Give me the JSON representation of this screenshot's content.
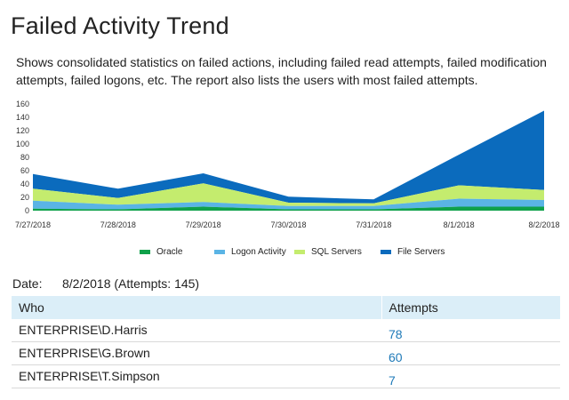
{
  "title": "Failed Activity Trend",
  "description": "Shows consolidated statistics on failed actions, including failed read attempts, failed modification attempts, failed logons, etc. The report also lists the users with most failed attempts.",
  "chart_data": {
    "type": "area",
    "stacked": true,
    "categories": [
      "7/27/2018",
      "7/28/2018",
      "7/29/2018",
      "7/30/2018",
      "7/31/2018",
      "8/1/2018",
      "8/2/2018"
    ],
    "yticks": [
      "0",
      "20",
      "40",
      "60",
      "80",
      "100",
      "120",
      "140",
      "160"
    ],
    "ylim": [
      0,
      160
    ],
    "grid": false,
    "legend_position": "bottom",
    "series": [
      {
        "name": "Oracle",
        "color": "#0fa14a",
        "values": [
          3,
          2,
          6,
          2,
          2,
          6,
          6
        ]
      },
      {
        "name": "Logon Activity",
        "color": "#5ab4e5",
        "values": [
          12,
          7,
          7,
          5,
          5,
          12,
          10
        ]
      },
      {
        "name": "SQL Servers",
        "color": "#c4ec6e",
        "values": [
          18,
          10,
          28,
          5,
          4,
          20,
          15
        ]
      },
      {
        "name": "File Servers",
        "color": "#0b6bbd",
        "values": [
          22,
          14,
          15,
          9,
          6,
          46,
          119
        ]
      }
    ]
  },
  "details": {
    "date_label": "Date:",
    "date_value": "8/2/2018 (Attempts: 145)"
  },
  "table": {
    "headers": [
      "Who",
      "Attempts"
    ],
    "rows": [
      {
        "who": "ENTERPRISE\\D.Harris",
        "attempts": "78"
      },
      {
        "who": "ENTERPRISE\\G.Brown",
        "attempts": "60"
      },
      {
        "who": "ENTERPRISE\\T.Simpson",
        "attempts": "7"
      }
    ]
  }
}
